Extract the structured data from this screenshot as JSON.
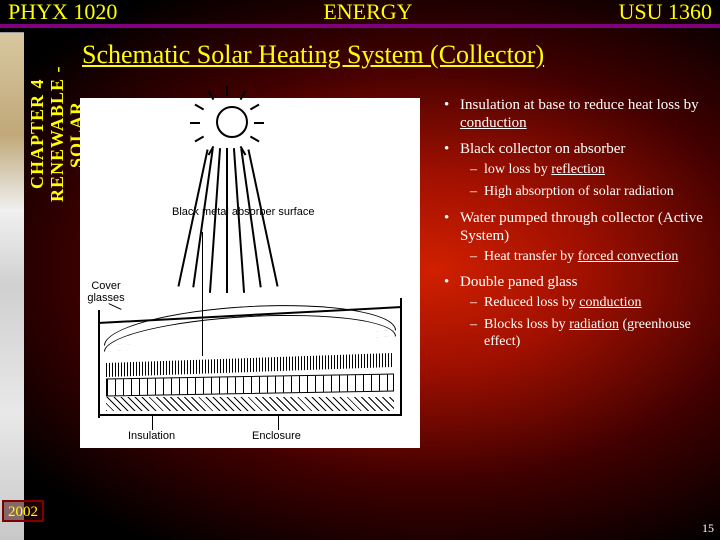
{
  "header": {
    "left": "PHYX 1020",
    "center": "ENERGY",
    "right": "USU 1360"
  },
  "sidebar": {
    "line1": "CHAPTER 4",
    "line2": "RENEWABLE - SOLAR"
  },
  "title": "Schematic Solar Heating System (Collector)",
  "diagram_labels": {
    "absorber": "Black metal\nabsorber surface",
    "cover": "Cover\nglasses",
    "insulation": "Insulation",
    "enclosure": "Enclosure"
  },
  "bullets": [
    {
      "text_pre": "Insulation at base to reduce heat loss by ",
      "u": "conduction",
      "sub": []
    },
    {
      "text_pre": "Black collector on absorber",
      "sub": [
        {
          "text_pre": "low loss by ",
          "u": "reflection"
        },
        {
          "text_pre": "High absorption of solar radiation"
        }
      ]
    },
    {
      "text_pre": "Water pumped through collector (Active System)",
      "sub": [
        {
          "text_pre": "Heat transfer by ",
          "u": "forced convection"
        }
      ]
    },
    {
      "text_pre": "Double paned glass",
      "sub": [
        {
          "text_pre": "Reduced loss by ",
          "u": "conduction"
        },
        {
          "text_pre": "Blocks loss by ",
          "u": "radiation",
          "suffix": " (greenhouse effect)"
        }
      ]
    }
  ],
  "year": "2002",
  "page_number": "15",
  "colors": {
    "accent": "#ffff00",
    "rule": "#800080"
  }
}
